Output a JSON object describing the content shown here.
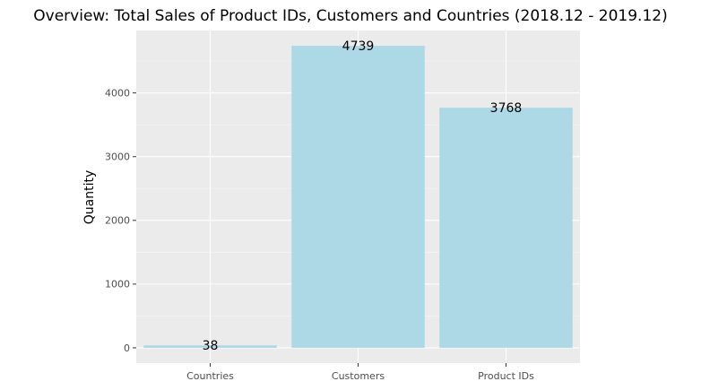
{
  "chart_data": {
    "type": "bar",
    "title": "Overview: Total Sales of Product IDs, Customers and Countries (2018.12 - 2019.12)",
    "xlabel": "",
    "ylabel": "Quantity",
    "categories": [
      "Countries",
      "Customers",
      "Product IDs"
    ],
    "values": [
      38,
      4739,
      3768
    ],
    "data_labels": [
      "38",
      "4739",
      "3768"
    ],
    "ylim": [
      -240,
      4980
    ],
    "yticks": [
      0,
      1000,
      2000,
      3000,
      4000
    ],
    "ytick_labels": [
      "0",
      "1000",
      "2000",
      "3000",
      "4000"
    ],
    "grid": true,
    "legend": "none",
    "colors": {
      "bar": "#add8e6",
      "panel_background": "#ebebeb",
      "grid_major": "#ffffff",
      "grid_minor": "#f5f5f5",
      "tick_mark": "#333333"
    }
  }
}
